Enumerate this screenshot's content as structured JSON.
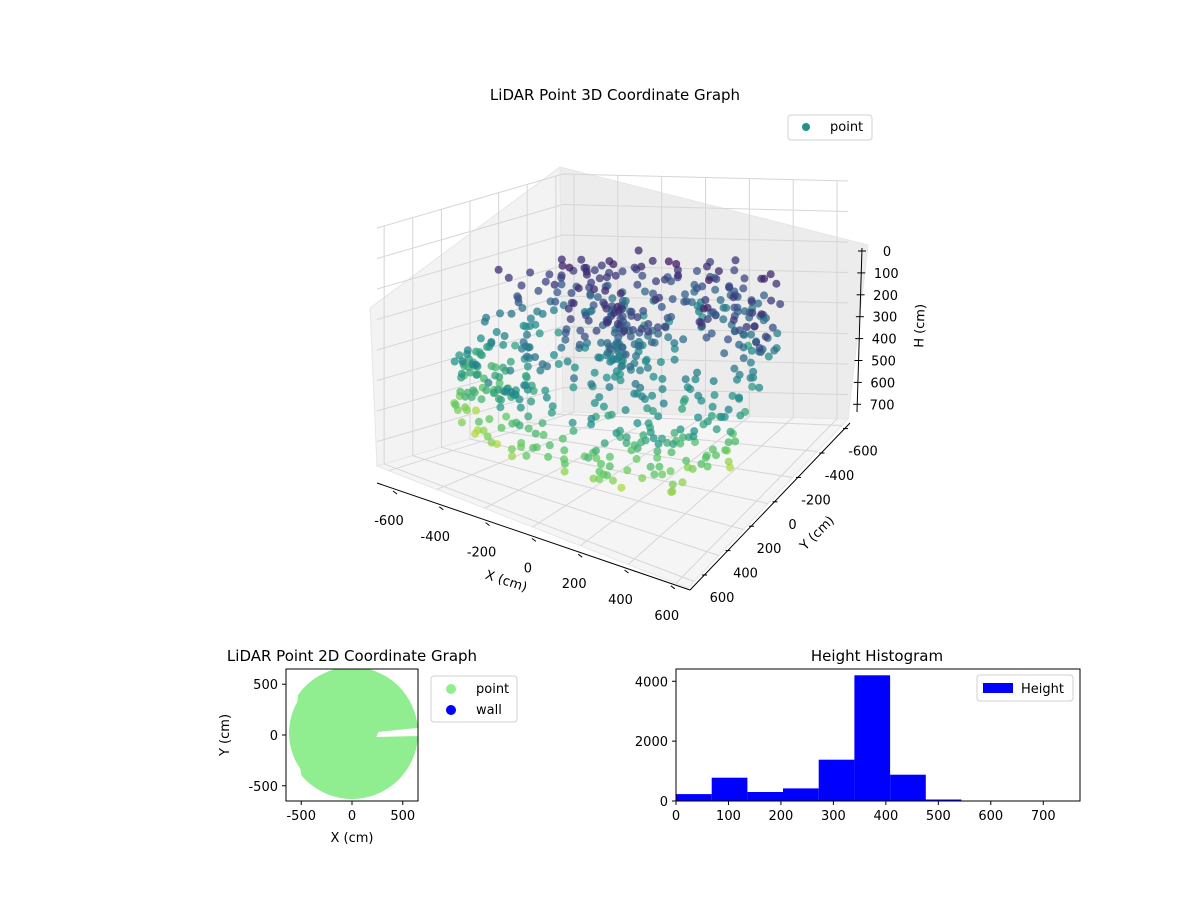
{
  "chart_data": [
    {
      "type": "scatter3d",
      "title": "LiDAR Point 3D Coordinate Graph",
      "xlabel": "X (cm)",
      "ylabel": "Y (cm)",
      "zlabel": "H (cm)",
      "xlim": [
        -650,
        650
      ],
      "ylim": [
        -650,
        650
      ],
      "zlim": [
        0,
        780
      ],
      "z_inverted": true,
      "xticks": [
        -600,
        -400,
        -200,
        0,
        200,
        400,
        600
      ],
      "yticks": [
        -600,
        -400,
        -200,
        0,
        200,
        400,
        600
      ],
      "zticks": [
        0,
        100,
        200,
        300,
        400,
        500,
        600,
        700
      ],
      "colormap": "viridis",
      "legend": {
        "placement": "top-right",
        "entries": [
          {
            "label": "point",
            "color": "#21918c"
          }
        ]
      },
      "grid": true
    },
    {
      "type": "scatter",
      "title": "LiDAR Point 2D Coordinate Graph",
      "xlabel": "X (cm)",
      "ylabel": "Y (cm)",
      "xlim": [
        -650,
        650
      ],
      "ylim": [
        -650,
        650
      ],
      "xticks": [
        -500,
        0,
        500
      ],
      "yticks": [
        -500,
        0,
        500
      ],
      "series": [
        {
          "name": "point",
          "color": "#90ee90"
        },
        {
          "name": "wall",
          "color": "#0000ff"
        }
      ],
      "legend_placement": "outside-right"
    },
    {
      "type": "bar",
      "title": "Height Histogram",
      "xlabel": "",
      "ylabel": "",
      "bin_edges": [
        0,
        68,
        136,
        204,
        272,
        340,
        408,
        476,
        544,
        612,
        680
      ],
      "values": [
        230,
        780,
        300,
        420,
        1380,
        4200,
        880,
        50,
        8,
        3
      ],
      "xlim": [
        0,
        770
      ],
      "ylim": [
        0,
        4410
      ],
      "xticks": [
        0,
        100,
        200,
        300,
        400,
        500,
        600,
        700
      ],
      "yticks": [
        0,
        2000,
        4000
      ],
      "series": [
        {
          "name": "Height",
          "color": "#0000ff"
        }
      ],
      "legend_placement": "top-right"
    }
  ]
}
